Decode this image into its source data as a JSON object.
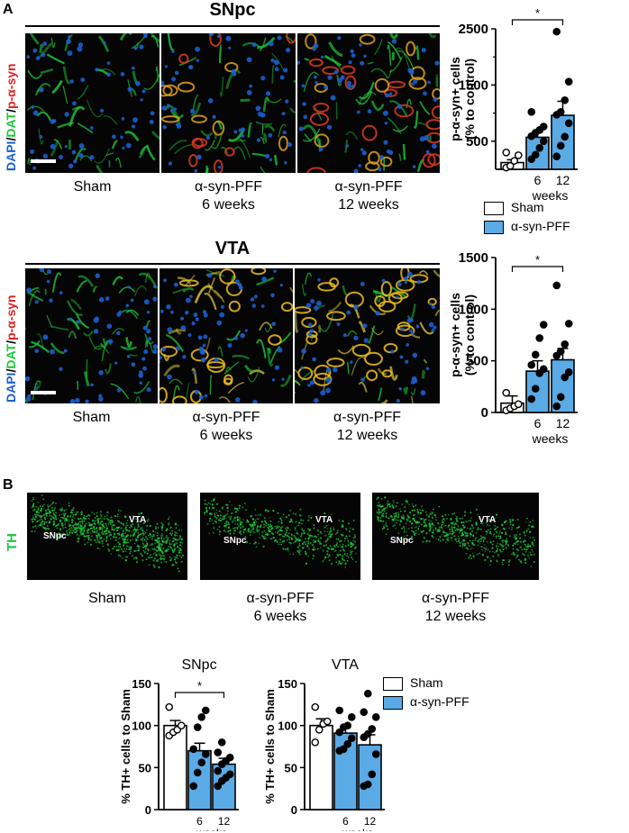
{
  "panel_a": {
    "letter": "A",
    "snpc": {
      "title": "SNpc",
      "stain_label": [
        "DAPI",
        "/",
        "DAT",
        "/",
        "p-α-syn"
      ],
      "captions": [
        {
          "line1": "Sham",
          "line2": ""
        },
        {
          "line1": "α-syn-PFF",
          "line2": "6 weeks"
        },
        {
          "line1": "α-syn-PFF",
          "line2": "12 weeks"
        }
      ]
    },
    "vta": {
      "title": "VTA",
      "stain_label": [
        "DAPI",
        "/",
        "DAT",
        "/",
        "p-α-syn"
      ],
      "captions": [
        {
          "line1": "Sham",
          "line2": ""
        },
        {
          "line1": "α-syn-PFF",
          "line2": "6 weeks"
        },
        {
          "line1": "α-syn-PFF",
          "line2": "12 weeks"
        }
      ]
    },
    "legend": {
      "sham": "Sham",
      "pff": "α-syn-PFF"
    }
  },
  "panel_b": {
    "letter": "B",
    "stain_label": "TH",
    "image_labels": {
      "snpc": "SNpc",
      "vta": "VTA"
    },
    "captions": [
      {
        "line1": "Sham",
        "line2": ""
      },
      {
        "line1": "α-syn-PFF",
        "line2": "6 weeks"
      },
      {
        "line1": "α-syn-PFF",
        "line2": "12 weeks"
      }
    ],
    "legend": {
      "sham": "Sham",
      "pff": "α-syn-PFF"
    }
  },
  "colors": {
    "pff_bar": "#5aaae6",
    "sham_bar": "#ffffff",
    "green": "#1ec83c",
    "red": "#e02020",
    "blue": "#1a5fd0"
  },
  "chart_data": [
    {
      "id": "snpc_psyn",
      "type": "bar",
      "title": "",
      "ylabel": "p-α-syn+ cells\n(% to control)",
      "ylim": [
        0,
        2500
      ],
      "yticks": [
        500,
        1500,
        2500
      ],
      "categories": [
        "",
        "6",
        "12"
      ],
      "xlabel": "weeks",
      "values": [
        120,
        570,
        960
      ],
      "errors": [
        50,
        90,
        250
      ],
      "points": [
        [
          30,
          60,
          150,
          250,
          300
        ],
        [
          180,
          260,
          380,
          500,
          590,
          650,
          700,
          760,
          1020
        ],
        [
          230,
          420,
          580,
          820,
          970,
          1020,
          1230,
          1560,
          2450
        ]
      ],
      "significance": {
        "from": 0,
        "to": 2,
        "label": "*"
      }
    },
    {
      "id": "vta_psyn",
      "type": "bar",
      "title": "",
      "ylabel": "p-α-syn+ cells\n(% to control)",
      "ylim": [
        0,
        1500
      ],
      "yticks": [
        0,
        500,
        1000,
        1500
      ],
      "categories": [
        "",
        "6",
        "12"
      ],
      "xlabel": "weeks",
      "values": [
        90,
        400,
        510
      ],
      "errors": [
        70,
        100,
        110
      ],
      "points": [
        [
          20,
          40,
          60,
          80,
          190
        ],
        [
          130,
          230,
          380,
          420,
          460,
          560,
          720,
          850
        ],
        [
          60,
          150,
          340,
          390,
          550,
          590,
          660,
          860,
          1230
        ]
      ],
      "significance": {
        "from": 0,
        "to": 2,
        "label": "*"
      }
    },
    {
      "id": "snpc_th",
      "type": "bar",
      "title": "SNpc",
      "ylabel": "% TH+ cells to Sham",
      "ylim": [
        0,
        150
      ],
      "yticks": [
        0,
        50,
        100,
        150
      ],
      "categories": [
        "",
        "6",
        "12"
      ],
      "xlabel": "weeks",
      "values": [
        100,
        70,
        54
      ],
      "errors": [
        6,
        9,
        7
      ],
      "points": [
        [
          88,
          92,
          95,
          100,
          122
        ],
        [
          28,
          44,
          56,
          66,
          72,
          98,
          110,
          118
        ],
        [
          28,
          34,
          38,
          42,
          46,
          54,
          58,
          62,
          68,
          80
        ]
      ],
      "significance": {
        "from": 0,
        "to": 2,
        "label": "*"
      }
    },
    {
      "id": "vta_th",
      "type": "bar",
      "title": "VTA",
      "ylabel": "% TH+ cells to Sham",
      "ylim": [
        0,
        150
      ],
      "yticks": [
        0,
        50,
        100,
        150
      ],
      "categories": [
        "",
        "6",
        "12"
      ],
      "xlabel": "weeks",
      "values": [
        100,
        91,
        77
      ],
      "errors": [
        8,
        8,
        12
      ],
      "points": [
        [
          80,
          95,
          102,
          105,
          122
        ],
        [
          70,
          72,
          78,
          85,
          92,
          98,
          100,
          110,
          118
        ],
        [
          28,
          30,
          42,
          66,
          86,
          90,
          96,
          110,
          116,
          138
        ]
      ]
    }
  ]
}
